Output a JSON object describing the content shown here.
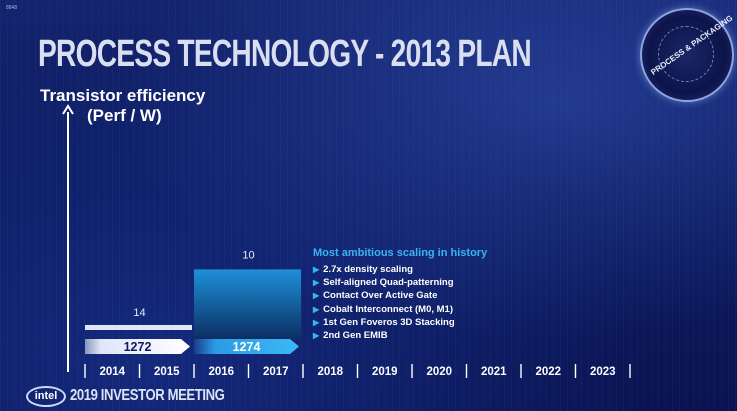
{
  "slide": {
    "tag": "8848",
    "title": "PROCESS TECHNOLOGY - 2013 PLAN",
    "badge_text": "PROCESS & PACKAGING",
    "footer": {
      "logo_text": "intel",
      "event_text": "2019 INVESTOR MEETING"
    }
  },
  "colors": {
    "accent": "#39b4f2",
    "node_bar_14": "#dfe6fb",
    "node_bar_10": "#1e90d8",
    "background": "#0c1a5e"
  },
  "chart_data": {
    "type": "bar",
    "title": "PROCESS TECHNOLOGY - 2013 PLAN",
    "ylabel_line1": "Transistor efficiency",
    "ylabel_line2": "(Perf / W)",
    "categories": [
      "2014",
      "2015",
      "2016",
      "2017",
      "2018",
      "2019",
      "2020",
      "2021",
      "2022",
      "2023"
    ],
    "nodes": [
      {
        "name": "14",
        "process": "1272",
        "start": "2014",
        "end": "2015",
        "level": 1
      },
      {
        "name": "10",
        "process": "1274",
        "start": "2016",
        "end": "2017",
        "level": 10
      }
    ],
    "annotation": {
      "heading": "Most ambitious scaling in history",
      "items": [
        "2.7x density scaling",
        "Self-aligned Quad-patterning",
        "Contact Over Active Gate",
        "Cobalt Interconnect (M0, M1)",
        "1st Gen Foveros 3D Stacking",
        "2nd Gen EMIB"
      ]
    }
  }
}
